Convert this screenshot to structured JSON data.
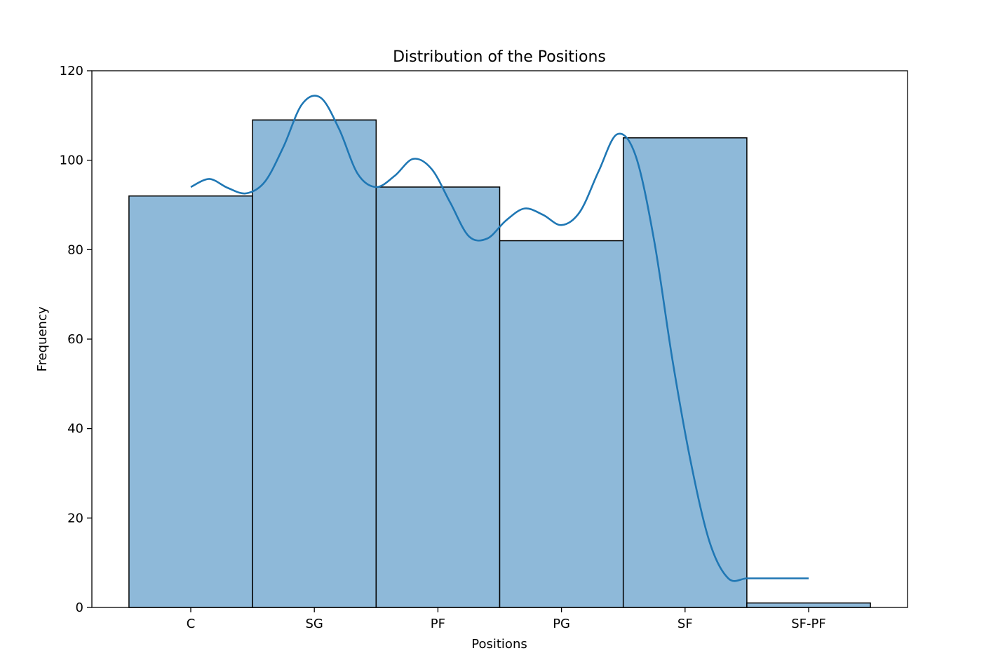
{
  "chart_data": {
    "type": "bar",
    "title": "Distribution of the Positions",
    "xlabel": "Positions",
    "ylabel": "Frequency",
    "categories": [
      "C",
      "SG",
      "PF",
      "PG",
      "SF",
      "SF-PF"
    ],
    "values": [
      92,
      109,
      94,
      82,
      105,
      1
    ],
    "ylim": [
      0,
      120
    ],
    "yticks": [
      0,
      20,
      40,
      60,
      80,
      100,
      120
    ],
    "grid": false,
    "bar_color": "#8eb9d9",
    "edge_color": "#000000",
    "kde": {
      "color": "#1f77b4",
      "x": [
        0,
        0.15,
        0.3,
        0.45,
        0.6,
        0.75,
        0.9,
        1.05,
        1.2,
        1.35,
        1.5,
        1.65,
        1.8,
        1.95,
        2.1,
        2.25,
        2.4,
        2.55,
        2.7,
        2.85,
        3.0,
        3.15,
        3.3,
        3.45,
        3.6,
        3.75,
        3.9,
        4.05,
        4.2,
        4.35,
        4.5,
        4.65,
        4.8,
        4.95,
        5.0
      ],
      "y": [
        94,
        95.8,
        93.8,
        92.6,
        95.2,
        103,
        112.5,
        114,
        107,
        97,
        94,
        96.5,
        100.3,
        98,
        90.5,
        83,
        82.5,
        86.5,
        89.2,
        87.8,
        85.5,
        88.5,
        97.5,
        105.8,
        101,
        82,
        55,
        32,
        14.5,
        6.5,
        6.5,
        6.5,
        6.5,
        6.5,
        6.5
      ]
    }
  }
}
